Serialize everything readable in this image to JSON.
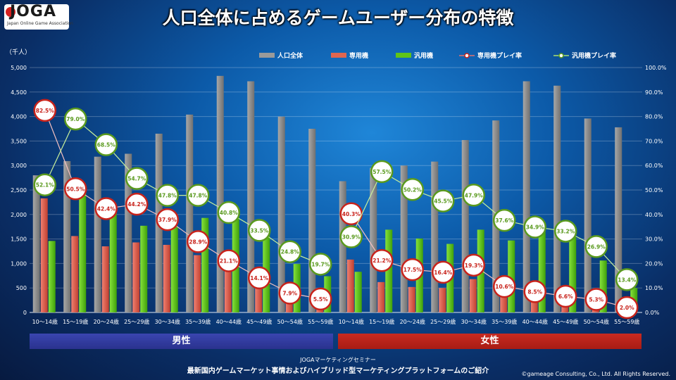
{
  "logo": {
    "text": "JOGA",
    "sub": "Japan Online Game Association"
  },
  "title": "人口全体に占めるゲームユーザー分布の特徴",
  "male_label": "男性",
  "female_label": "女性",
  "footer": {
    "line1": "JOGAマーケティングセミナー",
    "line2": "最新国内ゲームマーケット事情およびハイブリッド型マーケティングプラットフォームのご紹介",
    "copyright": "©gameage Consulting, Co., Ltd. All Rights Reserved."
  },
  "colors": {
    "population": "#8c8c8c",
    "dedicated": "#e06650",
    "general": "#5fc418",
    "dedicated_rate": "#c8231b",
    "general_rate": "#5a9a1e"
  },
  "chart_data": {
    "type": "bar",
    "unit_label": "（千人）",
    "categories": [
      "10～14歳",
      "15～19歳",
      "20～24歳",
      "25～29歳",
      "30～34歳",
      "35～39歳",
      "40～44歳",
      "45～49歳",
      "50～54歳",
      "55～59歳",
      "10～14歳",
      "15～19歳",
      "20～24歳",
      "25～29歳",
      "30～34歳",
      "35～39歳",
      "40～44歳",
      "45～49歳",
      "50～54歳",
      "55～59歳"
    ],
    "ylim": [
      0,
      5000
    ],
    "y2lim": [
      0,
      100
    ],
    "yticks": [
      "0",
      "500",
      "1,000",
      "1,500",
      "2,000",
      "2,500",
      "3,000",
      "3,500",
      "4,000",
      "4,500",
      "5,000"
    ],
    "y2ticks": [
      "0.0%",
      "10.0%",
      "20.0%",
      "30.0%",
      "40.0%",
      "50.0%",
      "60.0%",
      "70.0%",
      "80.0%",
      "90.0%",
      "100.0%"
    ],
    "series": [
      {
        "name": "人口全体",
        "kind": "bar",
        "values": [
          2800,
          3090,
          3180,
          3240,
          3650,
          4040,
          4830,
          4720,
          4000,
          3750,
          2680,
          2950,
          3000,
          3080,
          3520,
          3920,
          4720,
          4630,
          3960,
          3780
        ]
      },
      {
        "name": "専用機",
        "kind": "bar",
        "values": [
          2330,
          1560,
          1350,
          1430,
          1380,
          1170,
          1020,
          670,
          320,
          210,
          1080,
          620,
          520,
          500,
          680,
          410,
          400,
          300,
          210,
          75
        ]
      },
      {
        "name": "汎用機",
        "kind": "bar",
        "values": [
          1460,
          2440,
          2180,
          1770,
          1750,
          1930,
          1970,
          1580,
          990,
          740,
          830,
          1690,
          1510,
          1400,
          1690,
          1470,
          1650,
          1540,
          1060,
          500
        ]
      },
      {
        "name": "専用機プレイ率",
        "kind": "line",
        "axis": "y2",
        "values": [
          82.5,
          50.5,
          42.4,
          44.2,
          37.9,
          28.9,
          21.1,
          14.1,
          7.9,
          5.5,
          40.3,
          21.2,
          17.5,
          16.4,
          19.3,
          10.6,
          8.5,
          6.6,
          5.3,
          2.0
        ],
        "labels": [
          "82.5%",
          "50.5%",
          "42.4%",
          "44.2%",
          "37.9%",
          "28.9%",
          "21.1%",
          "14.1%",
          "7.9%",
          "5.5%",
          "40.3%",
          "21.2%",
          "17.5%",
          "16.4%",
          "19.3%",
          "10.6%",
          "8.5%",
          "6.6%",
          "5.3%",
          "2.0%"
        ]
      },
      {
        "name": "汎用機プレイ率",
        "kind": "line",
        "axis": "y2",
        "values": [
          52.1,
          79.0,
          68.5,
          54.7,
          47.8,
          47.8,
          40.8,
          33.5,
          24.8,
          19.7,
          30.9,
          57.5,
          50.2,
          45.5,
          47.9,
          37.6,
          34.9,
          33.2,
          26.9,
          13.4
        ],
        "labels": [
          "52.1%",
          "79.0%",
          "68.5%",
          "54.7%",
          "47.8%",
          "47.8%",
          "40.8%",
          "33.5%",
          "24.8%",
          "19.7%",
          "30.9%",
          "57.5%",
          "50.2%",
          "45.5%",
          "47.9%",
          "37.6%",
          "34.9%",
          "33.2%",
          "26.9%",
          "13.4%"
        ]
      }
    ],
    "legend_placement": "top-right",
    "grid": true
  }
}
